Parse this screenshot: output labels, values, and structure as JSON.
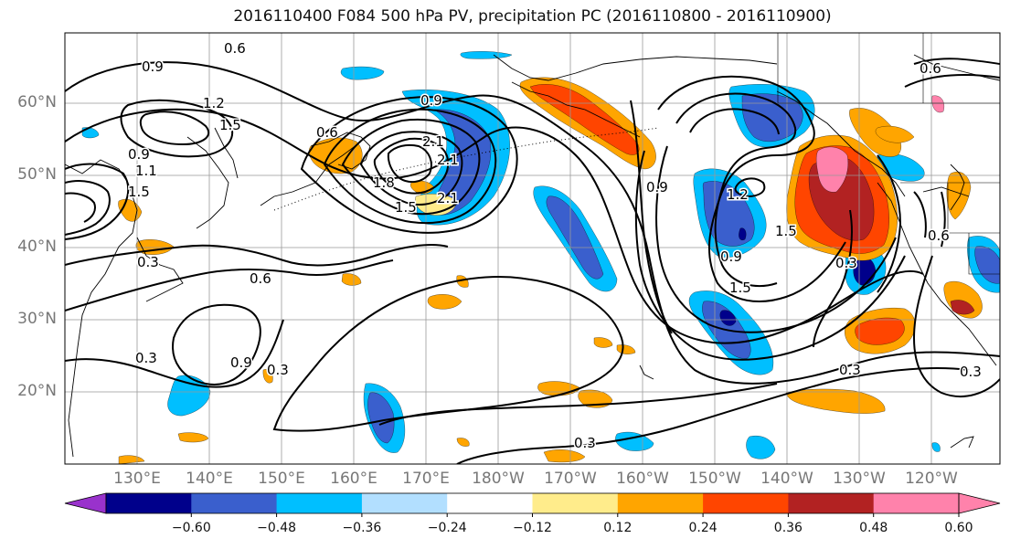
{
  "title": "2016110400 F084 500 hPa PV, precipitation PC (2016110800 - 2016110900)",
  "lat_labels": [
    "60°N",
    "50°N",
    "40°N",
    "30°N",
    "20°N"
  ],
  "lon_labels": [
    "130°E",
    "140°E",
    "150°E",
    "160°E",
    "170°E",
    "180°W",
    "170°W",
    "160°W",
    "150°W",
    "140°W",
    "130°W",
    "120°W"
  ],
  "contour_labels": [
    "0.6",
    "0.9",
    "1.2",
    "1.5",
    "0.9",
    "1.1",
    "1.5",
    "0.6",
    "0.9",
    "2.1",
    "2.1",
    "1.8",
    "1.5",
    "2.1",
    "0.3",
    "0.6",
    "0.3",
    "0.9",
    "0.3",
    "0.9",
    "1.2",
    "0.9",
    "1.5",
    "1.5",
    "0.3",
    "0.6",
    "0.6",
    "0.3",
    "0.3",
    "0.3"
  ],
  "colorbar": {
    "colors": [
      "#9932cc",
      "#00008b",
      "#3a5fcd",
      "#00bfff",
      "#b2dfff",
      "#ffffff",
      "#ffec8b",
      "#ffa500",
      "#ff4500",
      "#b22222",
      "#ff82ab",
      "#ff82ab"
    ],
    "tick_labels": [
      "−0.60",
      "−0.48",
      "−0.36",
      "−0.24",
      "−0.12",
      "0.12",
      "0.24",
      "0.36",
      "0.48",
      "0.60"
    ]
  },
  "fill_colors": {
    "neg_light": "#b2dfff",
    "neg_mid": "#00bfff",
    "neg_strong": "#3a5fcd",
    "neg_max": "#00008b",
    "pos_light": "#ffec8b",
    "pos_mid": "#ffa500",
    "pos_strong": "#ff4500",
    "pos_vstrong": "#b22222",
    "pos_max": "#ff82ab"
  }
}
